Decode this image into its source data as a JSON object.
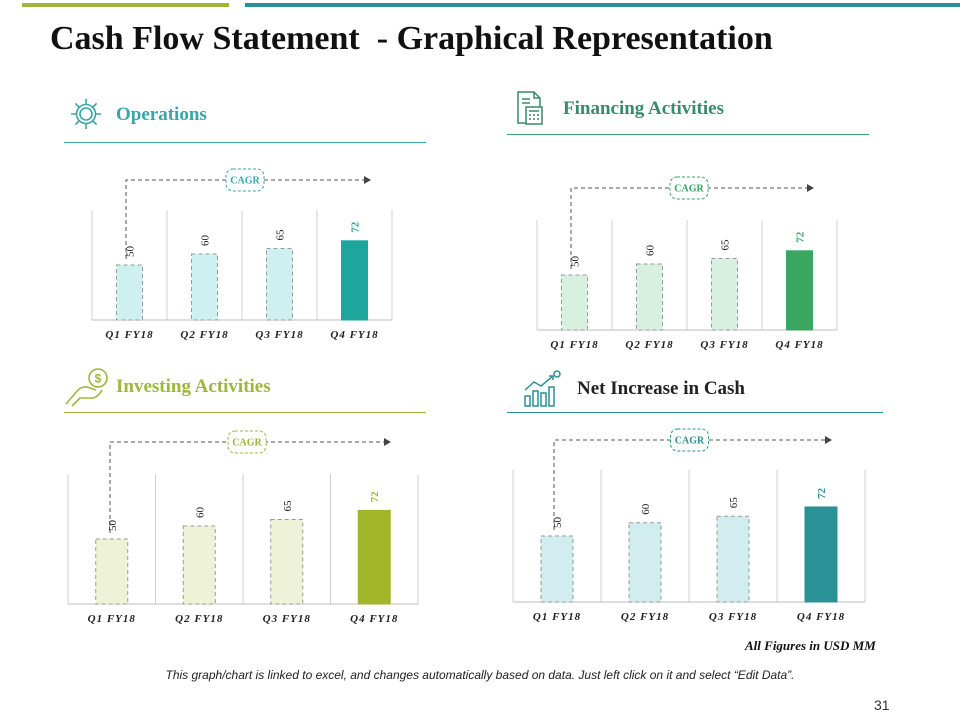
{
  "title": "Cash Flow Statement  - Graphical Representation",
  "colors": {
    "topbar_left": "#9db73a",
    "topbar_right": "#2a8f96",
    "title_text": "#111111"
  },
  "panels": [
    {
      "label": "Operations",
      "icon": "gear-icon",
      "label_color": "#3aa5a9",
      "line_color": "#3aa5a9",
      "light_fill": "#cff0f0",
      "highlight_fill": "#1fa69c",
      "highlight_text": "#1fa69c",
      "cagr_color": "#3aa5a9",
      "cagr_label": "CAGR"
    },
    {
      "label": "Financing Activities",
      "icon": "calculator-document-icon",
      "label_color": "#3a8a6a",
      "line_color": "#3aa566",
      "light_fill": "#d7f0df",
      "highlight_fill": "#3aa660",
      "highlight_text": "#3aa660",
      "cagr_color": "#3aa566",
      "cagr_label": "CAGR"
    },
    {
      "label": "Investing Activities",
      "icon": "hand-dollar-icon",
      "label_color": "#9db73a",
      "line_color": "#9db73a",
      "light_fill": "#eef3d7",
      "highlight_fill": "#a2b62a",
      "highlight_text": "#a2b62a",
      "cagr_color": "#9db73a",
      "cagr_label": "CAGR"
    },
    {
      "label": "Net Increase in Cash",
      "icon": "growth-chart-icon",
      "label_color": "#222222",
      "line_color": "#2a8f96",
      "light_fill": "#d1edf0",
      "highlight_fill": "#2a9297",
      "highlight_text": "#2a9297",
      "cagr_color": "#2a8f96",
      "cagr_label": "CAGR"
    }
  ],
  "chart_data": [
    {
      "type": "bar",
      "title": "Operations",
      "categories": [
        "Q1 FY18",
        "Q2 FY18",
        "Q3 FY18",
        "Q4 FY18"
      ],
      "values": [
        50,
        60,
        65,
        72
      ],
      "ylim": [
        0,
        100
      ],
      "annotation": "CAGR"
    },
    {
      "type": "bar",
      "title": "Financing Activities",
      "categories": [
        "Q1 FY18",
        "Q2 FY18",
        "Q3 FY18",
        "Q4 FY18"
      ],
      "values": [
        50,
        60,
        65,
        72
      ],
      "ylim": [
        0,
        100
      ],
      "annotation": "CAGR"
    },
    {
      "type": "bar",
      "title": "Investing Activities",
      "categories": [
        "Q1 FY18",
        "Q2 FY18",
        "Q3 FY18",
        "Q4 FY18"
      ],
      "values": [
        50,
        60,
        65,
        72
      ],
      "ylim": [
        0,
        100
      ],
      "annotation": "CAGR"
    },
    {
      "type": "bar",
      "title": "Net Increase in Cash",
      "categories": [
        "Q1 FY18",
        "Q2 FY18",
        "Q3 FY18",
        "Q4 FY18"
      ],
      "values": [
        50,
        60,
        65,
        72
      ],
      "ylim": [
        0,
        100
      ],
      "annotation": "CAGR"
    }
  ],
  "figures_note": "All Figures in USD MM",
  "footer_note": "This graph/chart is linked to excel, and changes automatically based on data. Just left click on it and select “Edit Data”.",
  "page_number": "31"
}
